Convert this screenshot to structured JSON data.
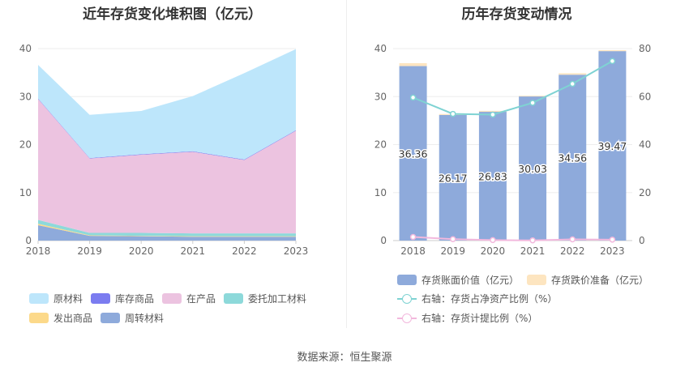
{
  "left_title": "近年存货变化堆积图（亿元）",
  "right_title": "历年存货变动情况",
  "source": "数据来源：恒生聚源",
  "chart_data": [
    {
      "type": "area",
      "title": "近年存货变化堆积图（亿元）",
      "categories": [
        "2018",
        "2019",
        "2020",
        "2021",
        "2022",
        "2023"
      ],
      "y_ticks": [
        "0",
        "10",
        "20",
        "30",
        "40"
      ],
      "ylim": [
        0,
        40
      ],
      "stacked": true,
      "grid": true,
      "legend_position": "bottom",
      "series": [
        {
          "name": "周转材料",
          "color": "#8eaadb",
          "values": [
            3.2,
            1.0,
            0.9,
            0.8,
            0.8,
            0.8
          ]
        },
        {
          "name": "发出商品",
          "color": "#fcd98a",
          "values": [
            0.3,
            0.1,
            0.1,
            0.1,
            0.1,
            0.1
          ]
        },
        {
          "name": "委托加工材料",
          "color": "#8dd9da",
          "values": [
            0.8,
            0.5,
            0.6,
            0.6,
            0.6,
            0.6
          ]
        },
        {
          "name": "在产品",
          "color": "#ecc3e0",
          "values": [
            25.2,
            15.5,
            16.3,
            17.0,
            15.3,
            21.4
          ]
        },
        {
          "name": "库存商品",
          "color": "#7b7cf0",
          "values": [
            0.1,
            0.1,
            0.1,
            0.1,
            0.1,
            0.1
          ]
        },
        {
          "name": "原材料",
          "color": "#bde6fb",
          "values": [
            7.0,
            9.0,
            9.0,
            11.5,
            18.0,
            16.9
          ]
        }
      ]
    },
    {
      "type": "bar",
      "title": "历年存货变动情况",
      "categories": [
        "2018",
        "2019",
        "2020",
        "2021",
        "2022",
        "2023"
      ],
      "y_ticks": [
        "0",
        "10",
        "20",
        "30",
        "40"
      ],
      "y2_ticks": [
        "0",
        "20",
        "40",
        "60",
        "80"
      ],
      "ylim": [
        0,
        40
      ],
      "y2lim": [
        0,
        80
      ],
      "grid": true,
      "legend_position": "bottom",
      "series": [
        {
          "name": "存货账面价值（亿元）",
          "type": "bar",
          "stacked": true,
          "color": "#8eaadb",
          "values": [
            36.36,
            26.17,
            26.83,
            30.03,
            34.56,
            39.47
          ],
          "labels": [
            "36.36",
            "26.17",
            "26.83",
            "30.03",
            "34.56",
            "39.47"
          ]
        },
        {
          "name": "存货跌价准备（亿元）",
          "type": "bar",
          "stacked": true,
          "color": "#fde5c0",
          "values": [
            0.6,
            0.2,
            0.2,
            0.15,
            0.3,
            0.2
          ]
        },
        {
          "name": "右轴：存货占净资产比例（%）",
          "type": "line",
          "axis": "right",
          "color": "#7fd3d3",
          "values": [
            59.6,
            52.8,
            52.5,
            57.4,
            65.3,
            74.8
          ]
        },
        {
          "name": "右轴：存货计提比例（%）",
          "type": "line",
          "axis": "right",
          "color": "#f2b8dd",
          "values": [
            1.5,
            0.6,
            0.2,
            0.1,
            0.5,
            0.4
          ]
        }
      ]
    }
  ]
}
